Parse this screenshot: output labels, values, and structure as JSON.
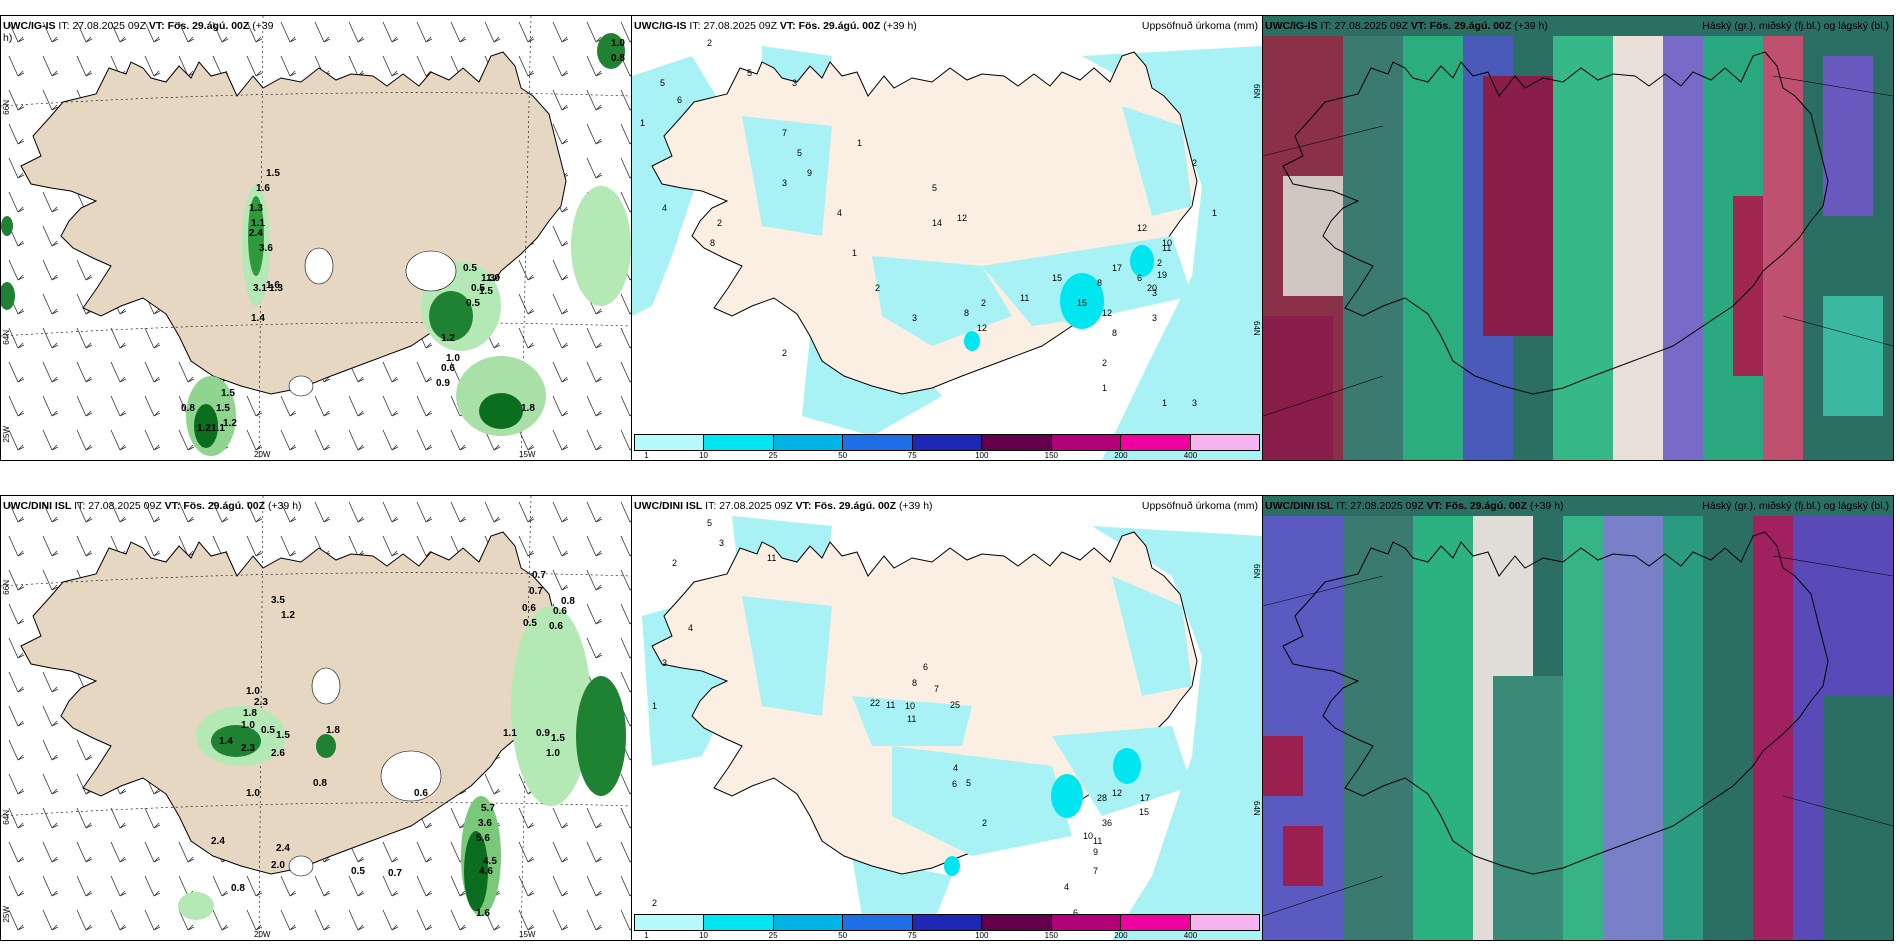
{
  "panels": {
    "p1": {
      "model": "UWC/IG-IS",
      "it_label": "IT:",
      "it_value": "27.08.2025 09Z",
      "vt_label": "VT:",
      "vt_value": "Fös. 29.ágú. 00Z",
      "lead": "(+39",
      "lead2": "h)",
      "labels": [
        "1.0",
        "0.8",
        "1.5",
        "1.6",
        "1.3",
        "1.1",
        "2.4",
        "3.6",
        "3.1",
        "1.3",
        "1.6",
        "1.4",
        "0.5",
        "0.5",
        "1.0",
        "1.3",
        "1.5",
        "0.5",
        "1.2",
        "1.0",
        "0.6",
        "0.9",
        "0.8",
        "1.5",
        "1.5",
        "1.2",
        "1.1",
        "1.2",
        "1.8"
      ]
    },
    "p2": {
      "model": "UWC/IG-IS",
      "it_label": "IT:",
      "it_value": "27.08.2025 09Z",
      "vt_label": "VT:",
      "vt_value": "Fös. 29.ágú. 00Z",
      "lead": "(+39 h)",
      "right_title": "Uppsöfnuð úrkoma (mm)",
      "labels": [
        "2",
        "5",
        "6",
        "1",
        "4",
        "2",
        "8",
        "5",
        "3",
        "7",
        "5",
        "9",
        "3",
        "1",
        "4",
        "1",
        "2",
        "5",
        "14",
        "12",
        "2",
        "3",
        "8",
        "2",
        "11",
        "12",
        "15",
        "17",
        "12",
        "11",
        "2",
        "6",
        "3",
        "8",
        "15",
        "12",
        "20",
        "10",
        "19",
        "8",
        "2",
        "1",
        "3",
        "2",
        "1",
        "1",
        "3"
      ]
    },
    "p3": {
      "model": "UWC/IG-IS",
      "it_label": "IT:",
      "it_value": "27.08.2025 09Z",
      "vt_label": "VT:",
      "vt_value": "Fös. 29.ágú. 00Z",
      "lead": "(+39 h)",
      "right_title": "Háský (gr.), miðský (fj.bl.) og lágský (bl.)"
    },
    "p4": {
      "model": "UWC/DINI ISL",
      "it_label": "IT:",
      "it_value": "27.08.2025 09Z",
      "vt_label": "VT:",
      "vt_value": "Fös. 29.ágú. 00Z",
      "lead": "(+39 h)",
      "labels": [
        "3.5",
        "1.2",
        "1.0",
        "2.3",
        "1.8",
        "0.5",
        "1.5",
        "1.0",
        "1.4",
        "2.3",
        "2.6",
        "1.8",
        "0.8",
        "1.0",
        "0.6",
        "2.4",
        "2.4",
        "2.0",
        "0.5",
        "0.7",
        "0.8",
        "0.7",
        "0.7",
        "0.6",
        "0.5",
        "0.8",
        "0.6",
        "0.6",
        "1.1",
        "0.9",
        "1.0",
        "1.5",
        "5.7",
        "3.6",
        "5.6",
        "4.5",
        "4.6",
        "1.6"
      ]
    },
    "p5": {
      "model": "UWC/DINI ISL",
      "it_label": "IT:",
      "it_value": "27.08.2025 09Z",
      "vt_label": "VT:",
      "vt_value": "Fös. 29.ágú. 00Z",
      "lead": "(+39 h)",
      "right_title": "Uppsöfnuð úrkoma (mm)",
      "labels": [
        "5",
        "3",
        "11",
        "2",
        "4",
        "3",
        "1",
        "22",
        "11",
        "10",
        "11",
        "25",
        "8",
        "6",
        "7",
        "4",
        "6",
        "5",
        "28",
        "36",
        "12",
        "17",
        "15",
        "11",
        "10",
        "9",
        "7",
        "4",
        "6",
        "2",
        "2"
      ]
    },
    "p6": {
      "model": "UWC/DINI ISL",
      "it_label": "IT:",
      "it_value": "27.08.2025 09Z",
      "vt_label": "VT:",
      "vt_value": "Fös. 29.ágú. 00Z",
      "lead": "(+39 h)",
      "right_title": "Háský (gr.), miðský (fj.bl.) og lágský (bl.)"
    }
  },
  "axes": {
    "lat66": "66N",
    "lat64": "64N",
    "lon25": "25W",
    "lon20": "20W",
    "lon15": "15W"
  },
  "colorbar": {
    "ticks": [
      "1",
      "10",
      "25",
      "50",
      "75",
      "100",
      "150",
      "200",
      "400"
    ],
    "colors": [
      "#b4fafa",
      "#00e6f0",
      "#00b4e6",
      "#1e6ee6",
      "#1e28b4",
      "#64004b",
      "#b40078",
      "#f000a0",
      "#f5b4f0"
    ]
  },
  "colors": {
    "land": "#e6d7c3",
    "precip_land": "#fbeee3",
    "precip_sea": "#a8f2f5",
    "green_light": "#b4e8b4",
    "green_dark": "#0a6e1e"
  }
}
